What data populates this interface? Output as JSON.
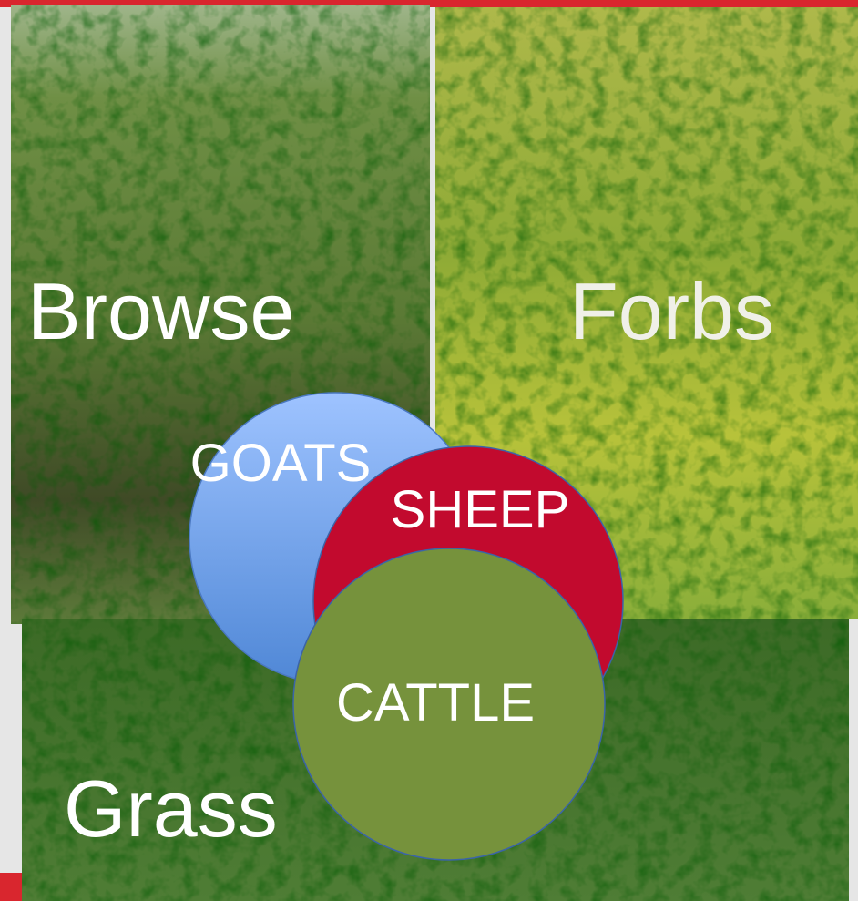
{
  "panels": {
    "browse": "Browse",
    "forbs": "Forbs",
    "grass": "Grass"
  },
  "circles": {
    "goats": "GOATS",
    "sheep": "SHEEP",
    "cattle": "CATTLE"
  }
}
